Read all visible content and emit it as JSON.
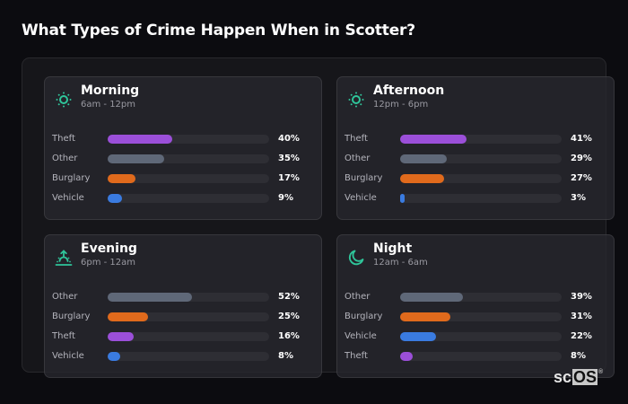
{
  "page": {
    "title": "What Types of Crime Happen When in Scotter?"
  },
  "colors": {
    "Theft": "#9b4fd9",
    "Other": "#5f6878",
    "Burglary": "#e06a1c",
    "Vehicle": "#3a7be0",
    "icon_accent": "#2fc59a",
    "track": "#2e2e34"
  },
  "cards": [
    {
      "title": "Morning",
      "subtitle": "6am - 12pm",
      "icon": "sun-icon",
      "rows": [
        {
          "label": "Theft",
          "value": 40,
          "display": "40%"
        },
        {
          "label": "Other",
          "value": 35,
          "display": "35%"
        },
        {
          "label": "Burglary",
          "value": 17,
          "display": "17%"
        },
        {
          "label": "Vehicle",
          "value": 9,
          "display": "9%"
        }
      ]
    },
    {
      "title": "Afternoon",
      "subtitle": "12pm - 6pm",
      "icon": "sun-icon",
      "rows": [
        {
          "label": "Theft",
          "value": 41,
          "display": "41%"
        },
        {
          "label": "Other",
          "value": 29,
          "display": "29%"
        },
        {
          "label": "Burglary",
          "value": 27,
          "display": "27%"
        },
        {
          "label": "Vehicle",
          "value": 3,
          "display": "3%"
        }
      ]
    },
    {
      "title": "Evening",
      "subtitle": "6pm - 12am",
      "icon": "sunset-icon",
      "rows": [
        {
          "label": "Other",
          "value": 52,
          "display": "52%"
        },
        {
          "label": "Burglary",
          "value": 25,
          "display": "25%"
        },
        {
          "label": "Theft",
          "value": 16,
          "display": "16%"
        },
        {
          "label": "Vehicle",
          "value": 8,
          "display": "8%"
        }
      ]
    },
    {
      "title": "Night",
      "subtitle": "12am - 6am",
      "icon": "moon-icon",
      "rows": [
        {
          "label": "Other",
          "value": 39,
          "display": "39%"
        },
        {
          "label": "Burglary",
          "value": 31,
          "display": "31%"
        },
        {
          "label": "Vehicle",
          "value": 22,
          "display": "22%"
        },
        {
          "label": "Theft",
          "value": 8,
          "display": "8%"
        }
      ]
    }
  ],
  "brand": {
    "prefix": "sc",
    "highlight": "OS",
    "mark": "®"
  },
  "chart_data": [
    {
      "type": "bar",
      "orientation": "horizontal",
      "title": "Morning",
      "subtitle": "6am - 12pm",
      "categories": [
        "Theft",
        "Other",
        "Burglary",
        "Vehicle"
      ],
      "values": [
        40,
        35,
        17,
        9
      ],
      "unit": "%",
      "xlim": [
        0,
        100
      ]
    },
    {
      "type": "bar",
      "orientation": "horizontal",
      "title": "Afternoon",
      "subtitle": "12pm - 6pm",
      "categories": [
        "Theft",
        "Other",
        "Burglary",
        "Vehicle"
      ],
      "values": [
        41,
        29,
        27,
        3
      ],
      "unit": "%",
      "xlim": [
        0,
        100
      ]
    },
    {
      "type": "bar",
      "orientation": "horizontal",
      "title": "Evening",
      "subtitle": "6pm - 12am",
      "categories": [
        "Other",
        "Burglary",
        "Theft",
        "Vehicle"
      ],
      "values": [
        52,
        25,
        16,
        8
      ],
      "unit": "%",
      "xlim": [
        0,
        100
      ]
    },
    {
      "type": "bar",
      "orientation": "horizontal",
      "title": "Night",
      "subtitle": "12am - 6am",
      "categories": [
        "Other",
        "Burglary",
        "Vehicle",
        "Theft"
      ],
      "values": [
        39,
        31,
        22,
        8
      ],
      "unit": "%",
      "xlim": [
        0,
        100
      ]
    }
  ]
}
